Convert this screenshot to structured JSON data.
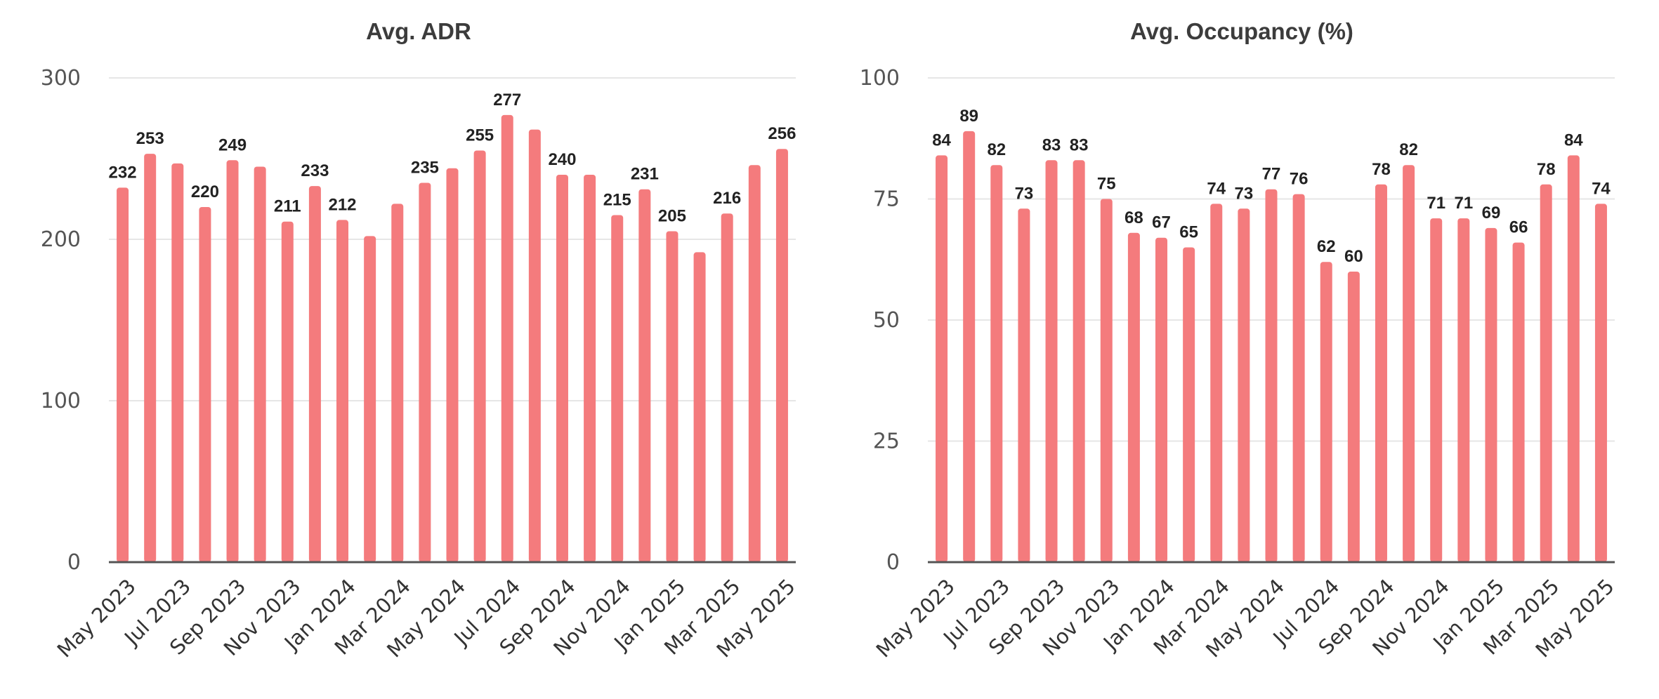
{
  "colors": {
    "bar": "#f47b7d",
    "grid": "#e6e6e6",
    "axis": "#555555"
  },
  "chart_data": [
    {
      "type": "bar",
      "title": "Avg. ADR",
      "xlabel": "",
      "ylabel": "",
      "ylim": [
        0,
        300
      ],
      "yticks": [
        0,
        100,
        200,
        300
      ],
      "grid": true,
      "categories": [
        "May 2023",
        "Jun 2023",
        "Jul 2023",
        "Aug 2023",
        "Sep 2023",
        "Oct 2023",
        "Nov 2023",
        "Dec 2023",
        "Jan 2024",
        "Feb 2024",
        "Mar 2024",
        "Apr 2024",
        "May 2024",
        "Jun 2024",
        "Jul 2024",
        "Aug 2024",
        "Sep 2024",
        "Oct 2024",
        "Nov 2024",
        "Dec 2024",
        "Jan 2025",
        "Feb 2025",
        "Mar 2025",
        "Apr 2025",
        "May 2025"
      ],
      "tick_labels": [
        "May 2023",
        "Jul 2023",
        "Sep 2023",
        "Nov 2023",
        "Jan 2024",
        "Mar 2024",
        "May 2024",
        "Jul 2024",
        "Sep 2024",
        "Nov 2024",
        "Jan 2025",
        "Mar 2025",
        "May 2025"
      ],
      "values": [
        232,
        253,
        247,
        220,
        249,
        245,
        211,
        233,
        212,
        202,
        222,
        235,
        244,
        255,
        277,
        268,
        240,
        240,
        215,
        231,
        205,
        192,
        216,
        246,
        256
      ],
      "data_labels": [
        "232",
        "253",
        "",
        "220",
        "249",
        "",
        "211",
        "233",
        "212",
        "",
        "",
        "235",
        "",
        "255",
        "277",
        "",
        "240",
        "",
        "215",
        "231",
        "205",
        "",
        "216",
        "",
        "256"
      ]
    },
    {
      "type": "bar",
      "title": "Avg. Occupancy (%)",
      "xlabel": "",
      "ylabel": "",
      "ylim": [
        0,
        100
      ],
      "yticks": [
        0,
        25,
        50,
        75,
        100
      ],
      "grid": true,
      "categories": [
        "May 2023",
        "Jun 2023",
        "Jul 2023",
        "Aug 2023",
        "Sep 2023",
        "Oct 2023",
        "Nov 2023",
        "Dec 2023",
        "Jan 2024",
        "Feb 2024",
        "Mar 2024",
        "Apr 2024",
        "May 2024",
        "Jun 2024",
        "Jul 2024",
        "Aug 2024",
        "Sep 2024",
        "Oct 2024",
        "Nov 2024",
        "Dec 2024",
        "Jan 2025",
        "Feb 2025",
        "Mar 2025",
        "Apr 2025",
        "May 2025"
      ],
      "tick_labels": [
        "May 2023",
        "Jul 2023",
        "Sep 2023",
        "Nov 2023",
        "Jan 2024",
        "Mar 2024",
        "May 2024",
        "Jul 2024",
        "Sep 2024",
        "Nov 2024",
        "Jan 2025",
        "Mar 2025",
        "May 2025"
      ],
      "values": [
        84,
        89,
        82,
        73,
        83,
        83,
        75,
        68,
        67,
        65,
        74,
        73,
        77,
        76,
        62,
        60,
        78,
        82,
        71,
        71,
        69,
        66,
        78,
        84,
        74
      ],
      "data_labels": [
        "84",
        "89",
        "82",
        "73",
        "83",
        "83",
        "75",
        "68",
        "67",
        "65",
        "74",
        "73",
        "77",
        "76",
        "62",
        "60",
        "78",
        "82",
        "71",
        "71",
        "69",
        "66",
        "78",
        "84",
        "74"
      ]
    }
  ]
}
